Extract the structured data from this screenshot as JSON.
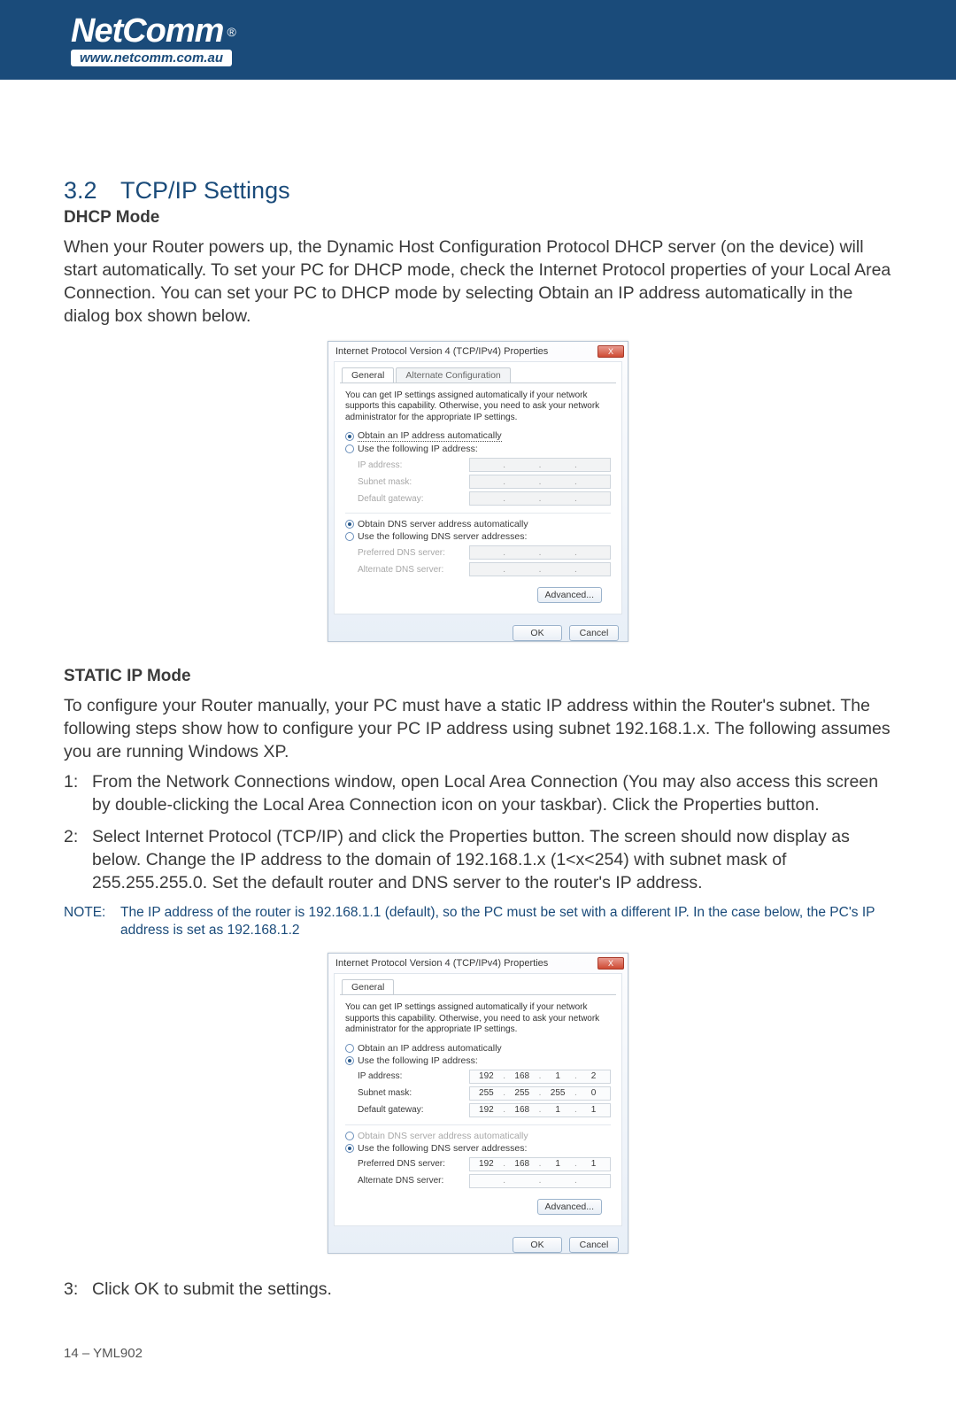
{
  "header": {
    "brand": "NetComm",
    "reg": "®",
    "url": "www.netcomm.com.au"
  },
  "section": {
    "number": "3.2",
    "title": "TCP/IP Settings"
  },
  "dhcp": {
    "heading": "DHCP Mode",
    "paragraph": "When your Router powers up, the Dynamic Host Configuration Protocol DHCP server (on the device) will start automatically.  To set your PC for DHCP mode, check the Internet Protocol properties of your Local Area Connection.  You can set your PC to DHCP mode by selecting Obtain an IP address automatically in the dialog box shown below."
  },
  "static": {
    "heading": "STATIC IP Mode",
    "paragraph": "To configure your Router manually, your PC must have a static IP address within the Router's subnet.  The following steps show how to configure your PC IP address using subnet 192.168.1.x.  The following assumes you are running Windows XP.",
    "steps": [
      {
        "num": "1:",
        "text": "From the Network Connections window, open Local Area Connection (You may also access this screen by double-clicking the Local Area Connection icon on your taskbar).  Click the Properties button."
      },
      {
        "num": "2:",
        "text": "Select Internet Protocol (TCP/IP) and click the Properties button.  The screen should now display as below.  Change the IP address to the domain of 192.168.1.x (1<x<254) with subnet mask of 255.255.255.0.  Set the default router and DNS server to the router's IP address."
      }
    ],
    "note_label": "NOTE:",
    "note_text": "The IP address of the router is 192.168.1.1 (default), so the PC must be set with a different IP.  In the case below, the PC's IP address is set as 192.168.1.2",
    "step3": {
      "num": "3:",
      "text": "Click OK to submit the settings."
    }
  },
  "dialog": {
    "title": "Internet Protocol Version 4 (TCP/IPv4) Properties",
    "close": "X",
    "tab_general": "General",
    "tab_alt": "Alternate Configuration",
    "desc": "You can get IP settings assigned automatically if your network supports this capability. Otherwise, you need to ask your network administrator for the appropriate IP settings.",
    "r_obtain_ip": "Obtain an IP address automatically",
    "r_use_ip": "Use the following IP address:",
    "lbl_ip": "IP address:",
    "lbl_mask": "Subnet mask:",
    "lbl_gw": "Default gateway:",
    "r_obtain_dns": "Obtain DNS server address automatically",
    "r_use_dns": "Use the following DNS server addresses:",
    "lbl_pref": "Preferred DNS server:",
    "lbl_alt": "Alternate DNS server:",
    "btn_adv": "Advanced...",
    "btn_ok": "OK",
    "btn_cancel": "Cancel"
  },
  "dialog2": {
    "ip": {
      "a": "192",
      "b": "168",
      "c": "1",
      "d": "2"
    },
    "mask": {
      "a": "255",
      "b": "255",
      "c": "255",
      "d": "0"
    },
    "gw": {
      "a": "192",
      "b": "168",
      "c": "1",
      "d": "1"
    },
    "pref": {
      "a": "192",
      "b": "168",
      "c": "1",
      "d": "1"
    }
  },
  "footer": {
    "text": "14 – YML902"
  }
}
